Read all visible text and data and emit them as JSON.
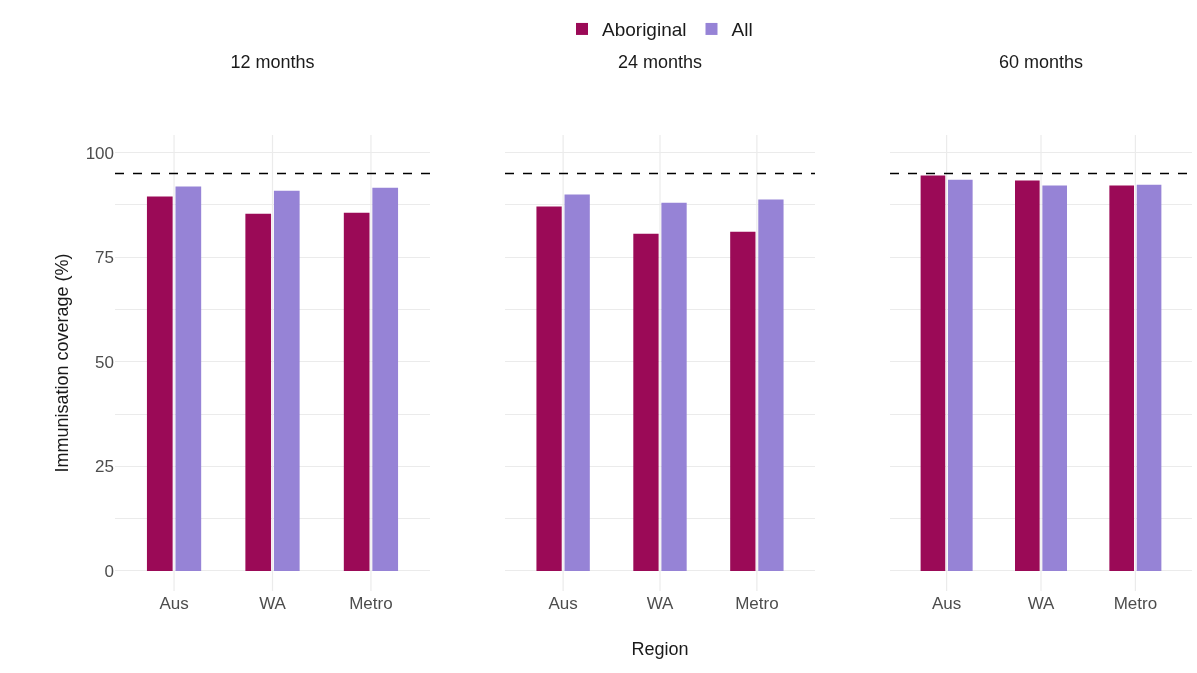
{
  "chart_data": [
    {
      "type": "bar",
      "title": "12 months",
      "ylabel": "Immunisation coverage (%)",
      "categories": [
        "Aus",
        "WA",
        "Metro"
      ],
      "series": [
        {
          "color": "#9b0a57",
          "values": [
            89.5,
            85.4,
            85.6
          ]
        },
        {
          "color": "#9683d6",
          "values": [
            91.9,
            90.9,
            91.6
          ]
        }
      ],
      "ylim": [
        -4.8,
        104.2
      ],
      "yticks": [
        0,
        {
          "value": 12.5,
          "label": null
        },
        25,
        {
          "value": 37.5,
          "label": null
        },
        50,
        {
          "value": 62.5,
          "label": null
        },
        75,
        {
          "value": 87.5,
          "label": null
        },
        100
      ],
      "ref_lines": [
        {
          "axis": "y",
          "value": 95,
          "color": "#000000",
          "line_style": "dashed"
        }
      ],
      "grid": true,
      "legend": false
    },
    {
      "type": "bar",
      "title": "24 months",
      "xlabel": "Region",
      "categories": [
        "Aus",
        "WA",
        "Metro"
      ],
      "series": [
        {
          "name": "Aboriginal",
          "color": "#9b0a57",
          "values": [
            87.1,
            80.6,
            81.1
          ]
        },
        {
          "name": "All",
          "color": "#9683d6",
          "values": [
            90.0,
            88.0,
            88.8
          ]
        }
      ],
      "ylim": [
        -4.8,
        104.2
      ],
      "yticks": [
        0,
        {
          "value": 12.5,
          "label": null
        },
        25,
        {
          "value": 37.5,
          "label": null
        },
        50,
        {
          "value": 62.5,
          "label": null
        },
        75,
        {
          "value": 87.5,
          "label": null
        },
        100
      ],
      "ref_lines": [
        {
          "axis": "y",
          "value": 95,
          "color": "#000000",
          "line_style": "dashed"
        }
      ],
      "grid": true,
      "legend": "top",
      "tick_labels": "x"
    },
    {
      "type": "bar",
      "title": "60 months",
      "categories": [
        "Aus",
        "WA",
        "Metro"
      ],
      "series": [
        {
          "color": "#9b0a57",
          "values": [
            94.5,
            93.3,
            92.1
          ]
        },
        {
          "color": "#9683d6",
          "values": [
            93.5,
            92.1,
            92.3
          ]
        }
      ],
      "ylim": [
        -4.8,
        104.2
      ],
      "yticks": [
        0,
        {
          "value": 12.5,
          "label": null
        },
        25,
        {
          "value": 37.5,
          "label": null
        },
        50,
        {
          "value": 62.5,
          "label": null
        },
        75,
        {
          "value": 87.5,
          "label": null
        },
        100
      ],
      "ref_lines": [
        {
          "axis": "y",
          "value": 95,
          "color": "#000000",
          "line_style": "dashed"
        }
      ],
      "grid": true,
      "legend": false,
      "tick_labels": "x"
    }
  ]
}
